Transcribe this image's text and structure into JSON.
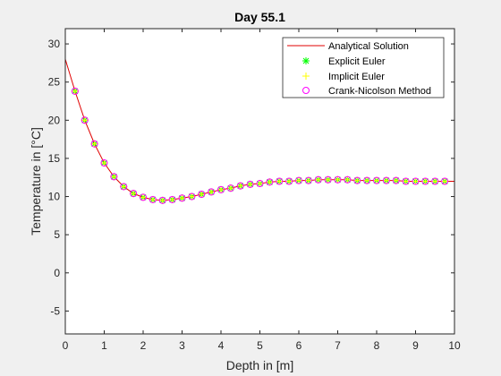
{
  "chart_data": {
    "type": "line",
    "title": "Day 55.1",
    "xlabel": "Depth in [m]",
    "ylabel": "Temperature in [°C]",
    "xlim": [
      0,
      10
    ],
    "ylim": [
      -8,
      32
    ],
    "xticks": [
      "0",
      "1",
      "2",
      "3",
      "4",
      "5",
      "6",
      "7",
      "8",
      "9",
      "10"
    ],
    "yticks": [
      "-5",
      "0",
      "5",
      "10",
      "15",
      "20",
      "25",
      "30"
    ],
    "grid": false,
    "legend_position": "top-right",
    "x": [
      0.25,
      0.5,
      0.75,
      1.0,
      1.25,
      1.5,
      1.75,
      2.0,
      2.25,
      2.5,
      2.75,
      3.0,
      3.25,
      3.5,
      3.75,
      4.0,
      4.25,
      4.5,
      4.75,
      5.0,
      5.25,
      5.5,
      5.75,
      6.0,
      6.25,
      6.5,
      6.75,
      7.0,
      7.25,
      7.5,
      7.75,
      8.0,
      8.25,
      8.5,
      8.75,
      9.0,
      9.25,
      9.5,
      9.75
    ],
    "series": [
      {
        "name": "Analytical Solution",
        "color": "#e00000",
        "style": "line",
        "x": [
          0,
          0.25,
          0.5,
          0.75,
          1.0,
          1.25,
          1.5,
          1.75,
          2.0,
          2.25,
          2.5,
          2.75,
          3.0,
          3.25,
          3.5,
          3.75,
          4.0,
          4.25,
          4.5,
          4.75,
          5.0,
          5.25,
          5.5,
          5.75,
          6.0,
          6.25,
          6.5,
          6.75,
          7.0,
          7.25,
          7.5,
          7.75,
          8.0,
          8.25,
          8.5,
          8.75,
          9.0,
          9.25,
          9.5,
          9.75,
          10.0
        ],
        "y": [
          28.0,
          23.8,
          20.0,
          16.9,
          14.4,
          12.6,
          11.3,
          10.4,
          9.9,
          9.6,
          9.5,
          9.6,
          9.8,
          10.0,
          10.3,
          10.6,
          10.9,
          11.1,
          11.4,
          11.6,
          11.7,
          11.9,
          12.0,
          12.0,
          12.1,
          12.1,
          12.2,
          12.2,
          12.2,
          12.2,
          12.1,
          12.1,
          12.1,
          12.1,
          12.1,
          12.0,
          12.0,
          12.0,
          12.0,
          12.0,
          12.0
        ]
      },
      {
        "name": "Explicit Euler",
        "color": "#00ff00",
        "style": "star",
        "y": [
          23.8,
          20.0,
          16.9,
          14.4,
          12.6,
          11.3,
          10.4,
          9.9,
          9.6,
          9.5,
          9.6,
          9.8,
          10.0,
          10.3,
          10.6,
          10.9,
          11.1,
          11.4,
          11.6,
          11.7,
          11.9,
          12.0,
          12.0,
          12.1,
          12.1,
          12.2,
          12.2,
          12.2,
          12.2,
          12.1,
          12.1,
          12.1,
          12.1,
          12.1,
          12.0,
          12.0,
          12.0,
          12.0,
          12.0
        ]
      },
      {
        "name": "Implicit Euler",
        "color": "#ffff00",
        "style": "plus",
        "y": [
          23.8,
          20.0,
          16.9,
          14.4,
          12.6,
          11.3,
          10.4,
          9.9,
          9.6,
          9.5,
          9.6,
          9.8,
          10.0,
          10.3,
          10.6,
          10.9,
          11.1,
          11.4,
          11.6,
          11.7,
          11.9,
          12.0,
          12.0,
          12.1,
          12.1,
          12.2,
          12.2,
          12.2,
          12.2,
          12.1,
          12.1,
          12.1,
          12.1,
          12.1,
          12.0,
          12.0,
          12.0,
          12.0,
          12.0
        ]
      },
      {
        "name": "Crank-Nicolson Method",
        "color": "#ff00ff",
        "style": "circle",
        "y": [
          23.8,
          20.0,
          16.9,
          14.4,
          12.6,
          11.3,
          10.4,
          9.9,
          9.6,
          9.5,
          9.6,
          9.8,
          10.0,
          10.3,
          10.6,
          10.9,
          11.1,
          11.4,
          11.6,
          11.7,
          11.9,
          12.0,
          12.0,
          12.1,
          12.1,
          12.2,
          12.2,
          12.2,
          12.2,
          12.1,
          12.1,
          12.1,
          12.1,
          12.1,
          12.0,
          12.0,
          12.0,
          12.0,
          12.0
        ]
      }
    ]
  }
}
